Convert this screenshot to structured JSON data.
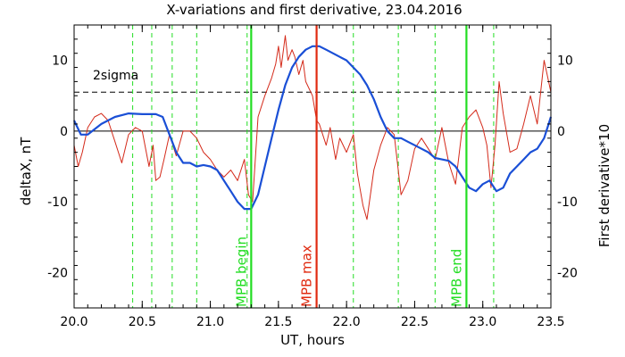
{
  "chart_data": {
    "type": "line",
    "title": "X-variations and first derivative, 23.04.2016",
    "xlabel": "UT, hours",
    "ylabel_left": "deltaX, nT",
    "ylabel_right": "First derivative*10",
    "xlim": [
      20.0,
      23.5
    ],
    "ylim": [
      -25,
      15
    ],
    "x_ticks": [
      "20.0",
      "20.5",
      "21.0",
      "21.5",
      "22.0",
      "22.5",
      "23.0",
      "23.5"
    ],
    "y_ticks": [
      "-20",
      "-10",
      "0",
      "10"
    ],
    "colors": {
      "deltaX": "#1a4fd6",
      "derivative": "#d42a1a",
      "markers_green": "#22dd22",
      "marker_red": "#e02a10",
      "threshold": "#000000"
    },
    "threshold": {
      "label": "2sigma",
      "value": 5.5
    },
    "zero_line": 0,
    "markers": [
      {
        "label": "MPB begin",
        "x": 21.3,
        "color": "#22dd22"
      },
      {
        "label": "MPB max",
        "x": 21.78,
        "color": "#e02a10"
      },
      {
        "label": "MPB end",
        "x": 22.88,
        "color": "#22dd22"
      }
    ],
    "dashed_markers_x": [
      20.43,
      20.57,
      20.72,
      20.9,
      21.27,
      22.05,
      22.38,
      22.65,
      23.08
    ],
    "series": [
      {
        "key": "deltaX",
        "x": [
          20.0,
          20.05,
          20.1,
          20.2,
          20.3,
          20.4,
          20.5,
          20.6,
          20.65,
          20.7,
          20.75,
          20.8,
          20.85,
          20.9,
          20.95,
          21.0,
          21.05,
          21.1,
          21.15,
          21.2,
          21.25,
          21.3,
          21.35,
          21.4,
          21.45,
          21.5,
          21.55,
          21.6,
          21.65,
          21.7,
          21.75,
          21.8,
          21.85,
          21.9,
          21.95,
          22.0,
          22.05,
          22.1,
          22.15,
          22.2,
          22.25,
          22.3,
          22.35,
          22.4,
          22.45,
          22.5,
          22.55,
          22.6,
          22.65,
          22.7,
          22.75,
          22.8,
          22.85,
          22.9,
          22.95,
          23.0,
          23.05,
          23.1,
          23.15,
          23.2,
          23.25,
          23.3,
          23.35,
          23.4,
          23.45,
          23.5
        ],
        "y": [
          1.5,
          -0.5,
          -0.5,
          1.0,
          2.0,
          2.5,
          2.4,
          2.4,
          2.0,
          -0.5,
          -3.0,
          -4.5,
          -4.5,
          -5.0,
          -4.8,
          -5.0,
          -5.5,
          -7.0,
          -8.5,
          -10.0,
          -11.0,
          -11.0,
          -9.0,
          -5.0,
          -1.0,
          3.0,
          6.5,
          9.0,
          10.5,
          11.5,
          12.0,
          12.0,
          11.5,
          11.0,
          10.5,
          10.0,
          9.0,
          8.0,
          6.5,
          4.5,
          2.0,
          0.0,
          -1.0,
          -1.0,
          -1.5,
          -2.0,
          -2.5,
          -3.0,
          -3.8,
          -4.0,
          -4.2,
          -5.0,
          -6.5,
          -8.0,
          -8.5,
          -7.5,
          -7.0,
          -8.5,
          -8.0,
          -6.0,
          -5.0,
          -4.0,
          -3.0,
          -2.5,
          -1.0,
          2.0
        ]
      },
      {
        "key": "derivative",
        "x": [
          20.0,
          20.03,
          20.06,
          20.1,
          20.15,
          20.2,
          20.25,
          20.3,
          20.35,
          20.4,
          20.45,
          20.5,
          20.55,
          20.58,
          20.6,
          20.63,
          20.66,
          20.7,
          20.75,
          20.8,
          20.85,
          20.9,
          20.95,
          21.0,
          21.05,
          21.1,
          21.15,
          21.2,
          21.25,
          21.28,
          21.31,
          21.35,
          21.4,
          21.45,
          21.48,
          21.5,
          21.52,
          21.55,
          21.57,
          21.6,
          21.62,
          21.65,
          21.68,
          21.7,
          21.75,
          21.78,
          21.8,
          21.85,
          21.88,
          21.92,
          21.95,
          22.0,
          22.05,
          22.08,
          22.12,
          22.15,
          22.2,
          22.25,
          22.3,
          22.35,
          22.4,
          22.45,
          22.5,
          22.55,
          22.6,
          22.65,
          22.7,
          22.75,
          22.8,
          22.85,
          22.9,
          22.95,
          23.0,
          23.03,
          23.06,
          23.09,
          23.12,
          23.15,
          23.2,
          23.25,
          23.3,
          23.35,
          23.4,
          23.45,
          23.5
        ],
        "y": [
          -2.0,
          -5.0,
          -3.0,
          0.5,
          2.0,
          2.5,
          1.5,
          -1.5,
          -4.5,
          -0.5,
          0.5,
          0.0,
          -5.0,
          -2.0,
          -7.0,
          -6.5,
          -4.0,
          -0.5,
          -3.5,
          0.0,
          0.0,
          -1.0,
          -3.0,
          -4.0,
          -5.5,
          -6.5,
          -5.5,
          -7.0,
          -4.0,
          -9.0,
          -10.0,
          2.0,
          5.0,
          7.5,
          9.5,
          12.0,
          9.0,
          13.5,
          10.0,
          11.5,
          10.5,
          8.0,
          10.0,
          7.0,
          5.0,
          1.5,
          1.0,
          -2.0,
          0.5,
          -4.0,
          -1.0,
          -3.0,
          -0.5,
          -6.0,
          -10.5,
          -12.5,
          -5.5,
          -2.0,
          0.5,
          -0.5,
          -9.0,
          -7.0,
          -2.5,
          -1.0,
          -2.5,
          -4.0,
          0.5,
          -4.5,
          -7.5,
          0.5,
          2.0,
          3.0,
          0.5,
          -2.0,
          -8.0,
          -2.0,
          7.0,
          2.5,
          -3.0,
          -2.5,
          1.0,
          5.0,
          1.0,
          10.0,
          5.5
        ]
      }
    ],
    "series_names_printed": false,
    "grid": false,
    "legend": "none"
  }
}
